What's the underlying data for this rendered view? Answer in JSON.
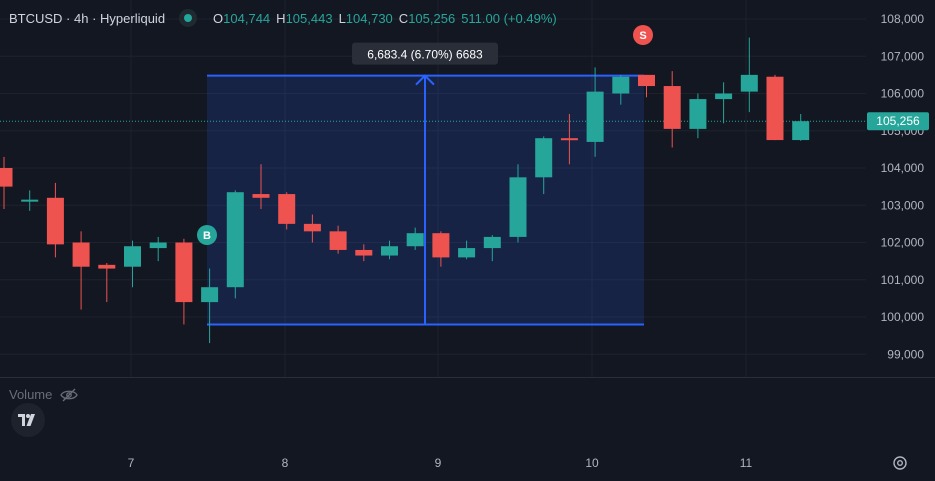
{
  "legend": {
    "symbol": "BTCUSD · 4h · Hyperliquid",
    "open_label": "O",
    "open": "104,744",
    "high_label": "H",
    "high": "105,443",
    "low_label": "L",
    "low": "104,730",
    "close_label": "C",
    "close": "105,256",
    "change": "511.00 (+0.49%)"
  },
  "volume_label": "Volume",
  "measure": {
    "label": "6,683.4 (6.70%) 6683",
    "from": 99800,
    "to": 106480
  },
  "current_price": {
    "label": "105,256",
    "value": 105256
  },
  "markers": [
    {
      "text": "B",
      "color": "#26a69a"
    },
    {
      "text": "S",
      "color": "#ef5350"
    }
  ],
  "chart_data": {
    "type": "candlestick",
    "y_ticks": [
      "108,000",
      "107,000",
      "106,000",
      "105,000",
      "104,000",
      "103,000",
      "102,000",
      "101,000",
      "100,000",
      "99,000"
    ],
    "y_tick_values": [
      108000,
      107000,
      106000,
      105000,
      104000,
      103000,
      102000,
      101000,
      100000,
      99000
    ],
    "x_ticks": [
      "7",
      "8",
      "9",
      "10",
      "11"
    ],
    "ylim": [
      98500,
      108400
    ],
    "grid": true,
    "up_color": "#26a69a",
    "down_color": "#ef5350",
    "candles": [
      {
        "o": 104000,
        "h": 104300,
        "l": 102900,
        "c": 103500
      },
      {
        "o": 103150,
        "h": 103400,
        "l": 102850,
        "c": 103150
      },
      {
        "o": 103200,
        "h": 103600,
        "l": 101600,
        "c": 101950
      },
      {
        "o": 102000,
        "h": 102300,
        "l": 100200,
        "c": 101350
      },
      {
        "o": 101400,
        "h": 101450,
        "l": 100400,
        "c": 101300
      },
      {
        "o": 101350,
        "h": 102050,
        "l": 100800,
        "c": 101900
      },
      {
        "o": 101850,
        "h": 102150,
        "l": 101500,
        "c": 102000
      },
      {
        "o": 102000,
        "h": 102100,
        "l": 99800,
        "c": 100400
      },
      {
        "o": 100400,
        "h": 101300,
        "l": 99300,
        "c": 100800
      },
      {
        "o": 100800,
        "h": 103400,
        "l": 100500,
        "c": 103350
      },
      {
        "o": 103300,
        "h": 104100,
        "l": 102900,
        "c": 103200
      },
      {
        "o": 103300,
        "h": 103350,
        "l": 102350,
        "c": 102500
      },
      {
        "o": 102500,
        "h": 102750,
        "l": 102000,
        "c": 102300
      },
      {
        "o": 102300,
        "h": 102450,
        "l": 101700,
        "c": 101800
      },
      {
        "o": 101800,
        "h": 101950,
        "l": 101500,
        "c": 101650
      },
      {
        "o": 101650,
        "h": 102050,
        "l": 101550,
        "c": 101900
      },
      {
        "o": 101900,
        "h": 102400,
        "l": 101800,
        "c": 102250
      },
      {
        "o": 102250,
        "h": 102300,
        "l": 101350,
        "c": 101600
      },
      {
        "o": 101600,
        "h": 102050,
        "l": 101550,
        "c": 101850
      },
      {
        "o": 101850,
        "h": 102200,
        "l": 101500,
        "c": 102150
      },
      {
        "o": 102150,
        "h": 104100,
        "l": 102000,
        "c": 103750
      },
      {
        "o": 103750,
        "h": 104850,
        "l": 103300,
        "c": 104800
      },
      {
        "o": 104800,
        "h": 105450,
        "l": 104100,
        "c": 104750
      },
      {
        "o": 104700,
        "h": 106700,
        "l": 104300,
        "c": 106050
      },
      {
        "o": 106000,
        "h": 106500,
        "l": 105700,
        "c": 106450
      },
      {
        "o": 106500,
        "h": 106500,
        "l": 105900,
        "c": 106200
      },
      {
        "o": 106200,
        "h": 106600,
        "l": 104550,
        "c": 105050
      },
      {
        "o": 105050,
        "h": 106000,
        "l": 104800,
        "c": 105850
      },
      {
        "o": 105850,
        "h": 106300,
        "l": 105200,
        "c": 106000
      },
      {
        "o": 106050,
        "h": 107500,
        "l": 105500,
        "c": 106500
      },
      {
        "o": 106450,
        "h": 106500,
        "l": 104750,
        "c": 104750
      },
      {
        "o": 104750,
        "h": 105450,
        "l": 104730,
        "c": 105256
      }
    ]
  }
}
